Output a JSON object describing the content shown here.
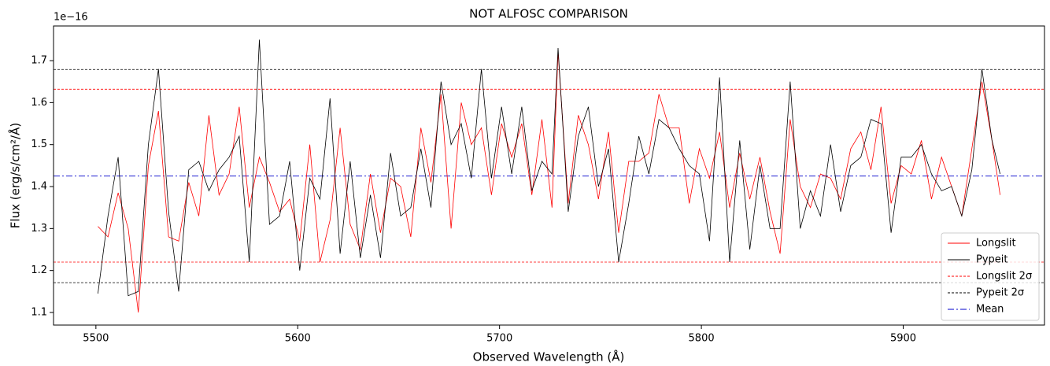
{
  "chart_data": {
    "type": "line",
    "title": "NOT ALFOSC COMPARISON",
    "x_label": "Observed Wavelength (Å)",
    "y_label": "Flux (erg/s/cm²/Å)",
    "offset_label": "1e−16",
    "x": [
      5501,
      5506,
      5511,
      5516,
      5521,
      5526,
      5531,
      5536,
      5541,
      5546,
      5551,
      5556,
      5561,
      5566,
      5571,
      5576,
      5581,
      5586,
      5591,
      5596,
      5601,
      5606,
      5611,
      5616,
      5621,
      5626,
      5631,
      5636,
      5641,
      5646,
      5651,
      5656,
      5661,
      5666,
      5671,
      5676,
      5681,
      5686,
      5691,
      5696,
      5701,
      5706,
      5711,
      5716,
      5721,
      5726,
      5729,
      5734,
      5739,
      5744,
      5749,
      5754,
      5759,
      5764,
      5769,
      5774,
      5779,
      5784,
      5789,
      5794,
      5799,
      5804,
      5809,
      5814,
      5819,
      5824,
      5829,
      5834,
      5839,
      5844,
      5849,
      5854,
      5859,
      5864,
      5869,
      5874,
      5879,
      5884,
      5889,
      5894,
      5899,
      5904,
      5909,
      5914,
      5919,
      5924,
      5929,
      5934,
      5939,
      5944,
      5948
    ],
    "series": [
      {
        "name": "Longslit",
        "color": "#ff0000",
        "values": [
          1.305,
          1.28,
          1.385,
          1.3,
          1.1,
          1.45,
          1.58,
          1.28,
          1.27,
          1.41,
          1.33,
          1.57,
          1.38,
          1.43,
          1.59,
          1.35,
          1.47,
          1.41,
          1.34,
          1.37,
          1.27,
          1.5,
          1.22,
          1.32,
          1.54,
          1.31,
          1.25,
          1.43,
          1.29,
          1.42,
          1.4,
          1.28,
          1.54,
          1.41,
          1.62,
          1.3,
          1.6,
          1.5,
          1.54,
          1.38,
          1.55,
          1.47,
          1.55,
          1.38,
          1.56,
          1.35,
          1.72,
          1.36,
          1.57,
          1.5,
          1.37,
          1.53,
          1.29,
          1.46,
          1.46,
          1.48,
          1.62,
          1.54,
          1.54,
          1.36,
          1.49,
          1.42,
          1.53,
          1.35,
          1.48,
          1.37,
          1.47,
          1.34,
          1.24,
          1.56,
          1.4,
          1.35,
          1.43,
          1.42,
          1.37,
          1.49,
          1.53,
          1.44,
          1.59,
          1.36,
          1.45,
          1.43,
          1.51,
          1.37,
          1.47,
          1.4,
          1.33,
          1.49,
          1.65,
          1.51,
          1.38
        ]
      },
      {
        "name": "Pypeit",
        "color": "#000000",
        "values": [
          1.145,
          1.33,
          1.47,
          1.14,
          1.15,
          1.5,
          1.68,
          1.34,
          1.15,
          1.44,
          1.46,
          1.39,
          1.44,
          1.47,
          1.52,
          1.22,
          1.75,
          1.31,
          1.33,
          1.46,
          1.2,
          1.42,
          1.37,
          1.61,
          1.24,
          1.46,
          1.23,
          1.38,
          1.23,
          1.48,
          1.33,
          1.35,
          1.49,
          1.35,
          1.65,
          1.5,
          1.55,
          1.42,
          1.68,
          1.42,
          1.59,
          1.43,
          1.59,
          1.39,
          1.46,
          1.43,
          1.73,
          1.34,
          1.52,
          1.59,
          1.4,
          1.49,
          1.22,
          1.36,
          1.52,
          1.43,
          1.56,
          1.54,
          1.49,
          1.45,
          1.43,
          1.27,
          1.66,
          1.22,
          1.51,
          1.25,
          1.45,
          1.3,
          1.3,
          1.65,
          1.3,
          1.39,
          1.33,
          1.5,
          1.34,
          1.45,
          1.47,
          1.56,
          1.55,
          1.29,
          1.47,
          1.47,
          1.5,
          1.43,
          1.39,
          1.4,
          1.33,
          1.44,
          1.68,
          1.51,
          1.43
        ]
      }
    ],
    "hlines": [
      {
        "name": "Longslit 2σ",
        "color": "#ff0000",
        "values": [
          1.632,
          1.22
        ]
      },
      {
        "name": "Pypeit 2σ",
        "color": "#000000",
        "values": [
          1.679,
          1.171
        ]
      },
      {
        "name": "Mean",
        "color": "#0000cc",
        "values": [
          1.425
        ]
      }
    ],
    "xlim": [
      5479,
      5970
    ],
    "ylim": [
      1.07,
      1.7826
    ],
    "xticks": [
      5500,
      5600,
      5700,
      5800,
      5900
    ],
    "yticks": [
      1.1,
      1.2,
      1.3,
      1.4,
      1.5,
      1.6,
      1.7
    ],
    "legend": "lower right"
  }
}
